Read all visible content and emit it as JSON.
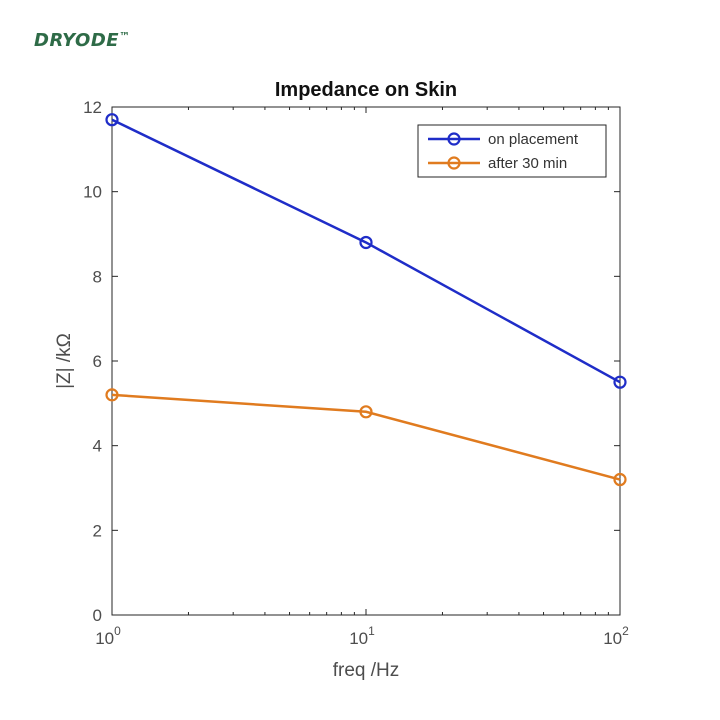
{
  "brand": {
    "name": "DRYODE",
    "mark": "™",
    "color": "#2e6b47"
  },
  "chart_data": {
    "type": "line",
    "title": "Impedance on Skin",
    "xlabel": "freq /Hz",
    "ylabel": "|Z| /kΩ",
    "x_scale": "log",
    "xlim": [
      1,
      100
    ],
    "ylim": [
      0,
      12
    ],
    "x": [
      1,
      10,
      100
    ],
    "x_ticks": [
      {
        "base": "10",
        "exp": "0"
      },
      {
        "base": "10",
        "exp": "1"
      },
      {
        "base": "10",
        "exp": "2"
      }
    ],
    "y_ticks": [
      "0",
      "2",
      "4",
      "6",
      "8",
      "10",
      "12"
    ],
    "grid": false,
    "legend_position": "top-right",
    "series": [
      {
        "name": "on placement",
        "values": [
          11.7,
          8.8,
          5.5
        ],
        "color": "#1f2dc8",
        "marker": "circle"
      },
      {
        "name": "after 30 min",
        "values": [
          5.2,
          4.8,
          3.2
        ],
        "color": "#e07b1f",
        "marker": "circle"
      }
    ]
  }
}
